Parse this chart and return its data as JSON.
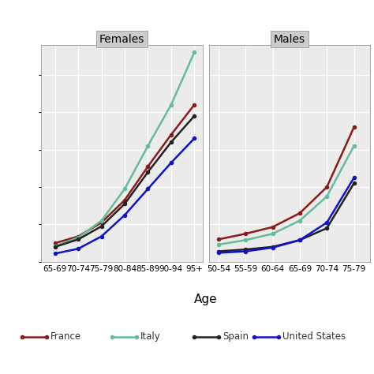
{
  "females": {
    "age_labels": [
      "65-69",
      "70-74",
      "75-79",
      "80-84",
      "85-89",
      "90-94",
      "95+"
    ],
    "age_x": [
      0,
      1,
      2,
      3,
      4,
      5,
      6
    ],
    "France": [
      0.05,
      0.068,
      0.105,
      0.165,
      0.255,
      0.34,
      0.42
    ],
    "Italy": [
      0.042,
      0.065,
      0.11,
      0.195,
      0.31,
      0.42,
      0.56
    ],
    "Spain": [
      0.04,
      0.06,
      0.095,
      0.155,
      0.24,
      0.32,
      0.39
    ],
    "United States": [
      0.022,
      0.035,
      0.068,
      0.125,
      0.195,
      0.265,
      0.33
    ]
  },
  "males": {
    "age_labels": [
      "50-54",
      "55-59",
      "60-64",
      "65-69",
      "70-74",
      "75-79"
    ],
    "age_x": [
      0,
      1,
      2,
      3,
      4,
      5
    ],
    "France": [
      0.06,
      0.075,
      0.093,
      0.13,
      0.2,
      0.36
    ],
    "Italy": [
      0.046,
      0.058,
      0.075,
      0.11,
      0.175,
      0.31
    ],
    "Spain": [
      0.028,
      0.033,
      0.04,
      0.058,
      0.09,
      0.21
    ],
    "United States": [
      0.024,
      0.028,
      0.038,
      0.058,
      0.105,
      0.225
    ]
  },
  "colors": {
    "France": "#8B1A1A",
    "Italy": "#66BB99",
    "Spain": "#222222",
    "United States": "#1111CC"
  },
  "panel_bg": "#EBEBEB",
  "grid_color": "#FFFFFF",
  "title_bg": "#CCCCCC",
  "xlabel": "Age",
  "legend_entries": [
    "France",
    "Italy",
    "Spain",
    "United States"
  ],
  "ylim": [
    0,
    0.58
  ],
  "yticks": [
    0.0,
    0.1,
    0.2,
    0.3,
    0.4,
    0.5
  ],
  "marker_size": 4,
  "lw": 1.8
}
